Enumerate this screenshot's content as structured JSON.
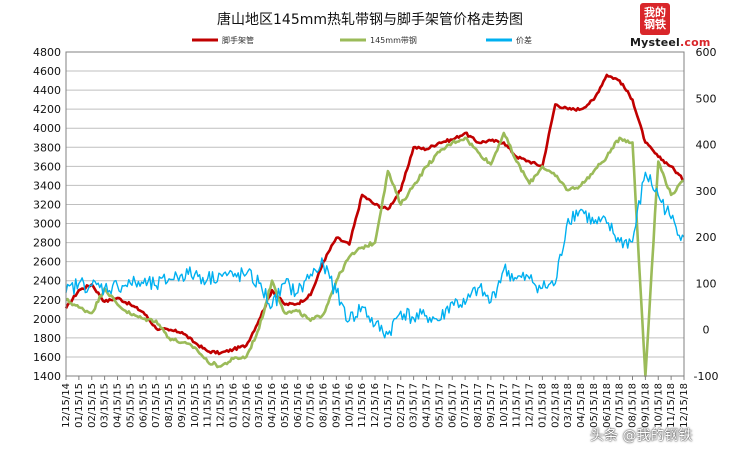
{
  "logo": {
    "char1": "我的",
    "char2": "钢铁",
    "brand": "Mysteel",
    "domain": ".com"
  },
  "watermark": "头条 @我的钢铁",
  "chart_data": {
    "type": "line",
    "title": "唐山地区145mm热轧带钢与脚手架管价格走势图",
    "x_tick_labels": [
      "12/15/14",
      "01/15/15",
      "02/15/15",
      "03/15/15",
      "04/15/15",
      "05/15/15",
      "06/15/15",
      "07/15/15",
      "08/15/15",
      "09/15/15",
      "10/15/15",
      "11/15/15",
      "12/15/15",
      "01/15/16",
      "02/15/16",
      "03/15/16",
      "04/15/16",
      "05/15/16",
      "06/15/16",
      "07/15/16",
      "08/15/16",
      "09/15/16",
      "10/15/16",
      "11/15/16",
      "12/15/16",
      "01/15/17",
      "02/15/17",
      "03/15/17",
      "04/15/17",
      "05/15/17",
      "06/15/17",
      "07/15/17",
      "08/15/17",
      "09/15/17",
      "10/15/17",
      "11/15/17",
      "12/15/17",
      "01/15/18",
      "02/15/18",
      "03/15/18",
      "04/15/18",
      "05/15/18",
      "06/15/18",
      "07/15/18",
      "08/15/18",
      "09/15/18",
      "10/15/18",
      "11/15/18",
      "12/15/18"
    ],
    "y_left": {
      "min": 1400,
      "max": 4800,
      "step": 200
    },
    "y_right": {
      "min": -100,
      "max": 600,
      "step": 100
    },
    "grid": true,
    "legend_position": "top",
    "series": [
      {
        "name": "脚手架管",
        "axis": "left",
        "color": "#c00000",
        "values": [
          2110,
          2300,
          2360,
          2180,
          2220,
          2150,
          2070,
          1900,
          1880,
          1860,
          1750,
          1660,
          1640,
          1680,
          1720,
          1990,
          2300,
          2150,
          2160,
          2250,
          2600,
          2850,
          2780,
          3300,
          3200,
          3150,
          3350,
          3800,
          3780,
          3850,
          3880,
          3950,
          3850,
          3870,
          3850,
          3700,
          3650,
          3600,
          4250,
          4200,
          4200,
          4300,
          4560,
          4500,
          4300,
          3850,
          3700,
          3600,
          3450
        ]
      },
      {
        "name": "145mm带钢",
        "axis": "left",
        "color": "#9bbb59",
        "values": [
          2200,
          2120,
          2060,
          2320,
          2150,
          2050,
          2000,
          1980,
          1800,
          1750,
          1700,
          1550,
          1500,
          1580,
          1600,
          1900,
          2400,
          2060,
          2080,
          1980,
          2050,
          2400,
          2650,
          2750,
          2800,
          3550,
          3200,
          3400,
          3600,
          3750,
          3850,
          3900,
          3750,
          3620,
          3950,
          3650,
          3420,
          3600,
          3500,
          3350,
          3400,
          3550,
          3700,
          3900,
          3850,
          1400,
          3650,
          3300,
          3450
        ]
      },
      {
        "name": "价差",
        "axis": "right",
        "color": "#00b0f0",
        "values": [
          80,
          100,
          95,
          90,
          95,
          100,
          100,
          95,
          110,
          120,
          120,
          110,
          120,
          115,
          120,
          100,
          50,
          100,
          80,
          120,
          140,
          80,
          20,
          50,
          10,
          -10,
          40,
          25,
          30,
          20,
          60,
          55,
          90,
          60,
          130,
          110,
          110,
          90,
          100,
          240,
          260,
          230,
          230,
          190,
          190,
          340,
          290,
          240,
          200
        ]
      }
    ]
  }
}
